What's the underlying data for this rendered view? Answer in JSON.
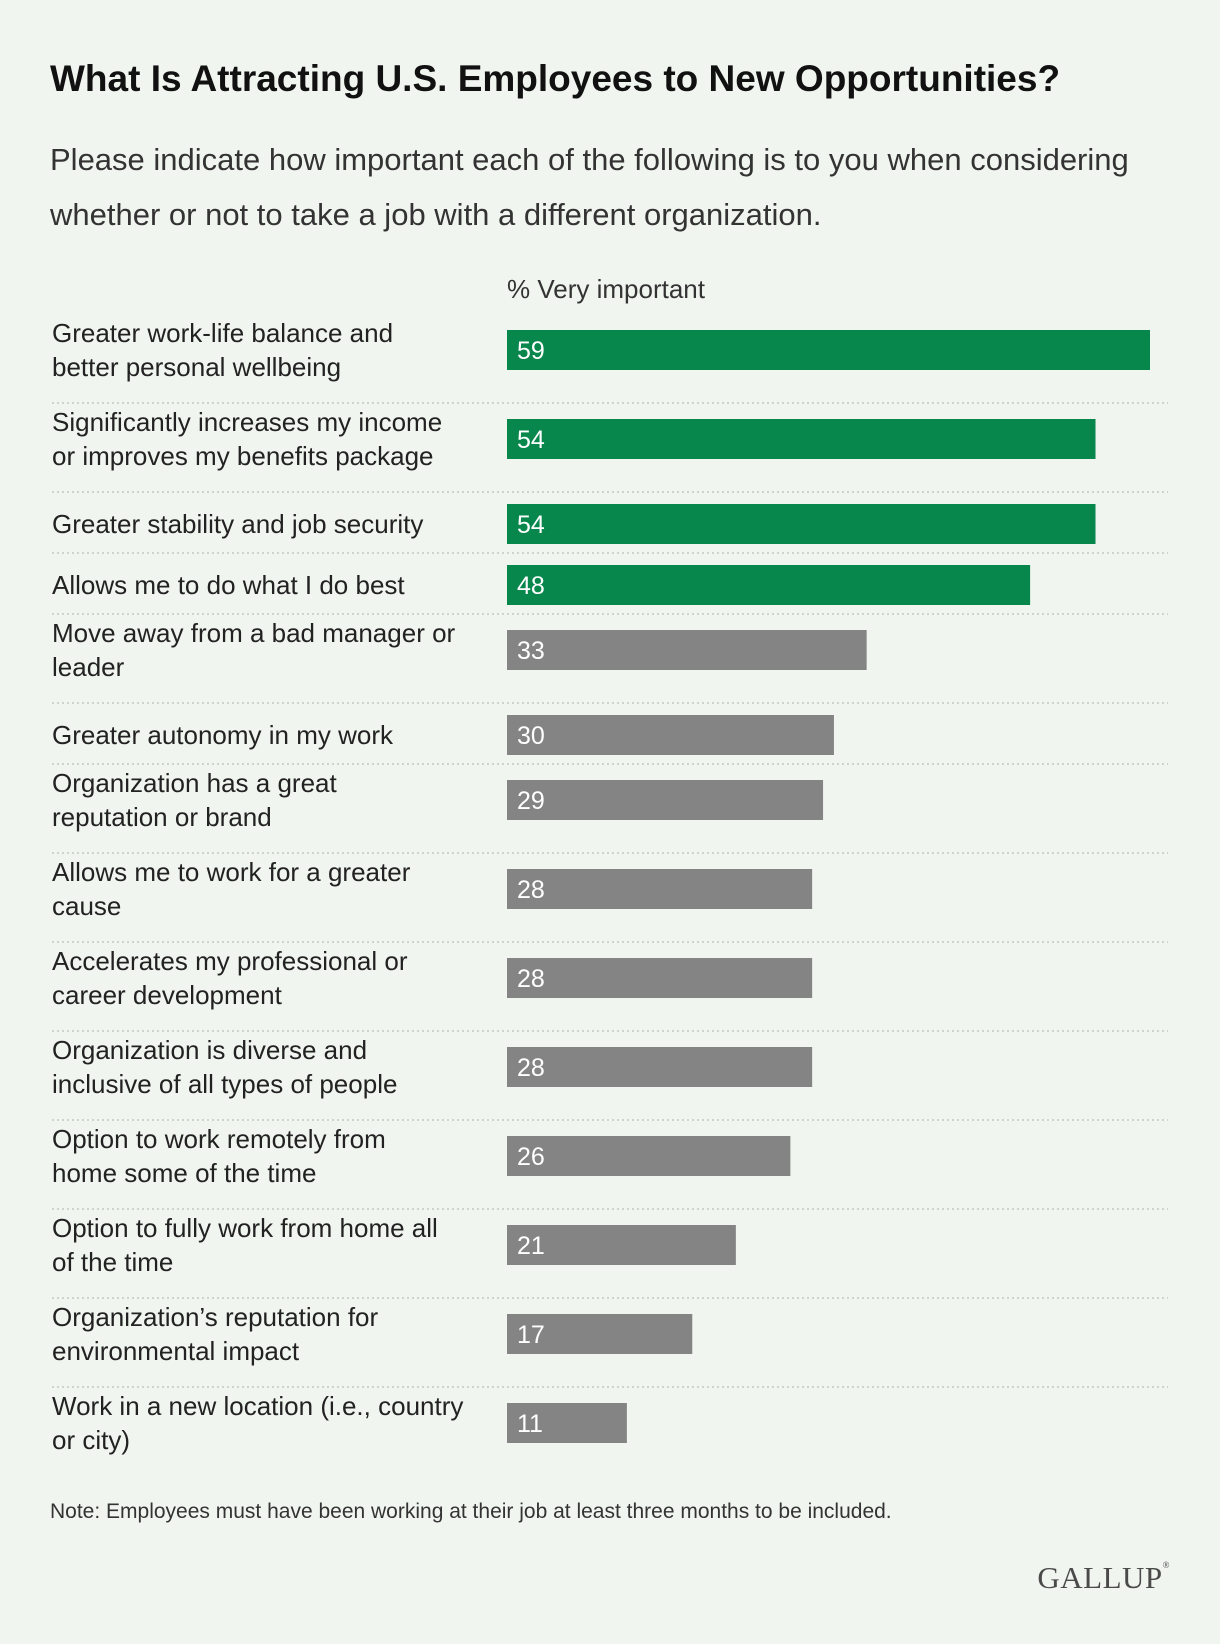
{
  "title": "What Is Attracting U.S. Employees to New Opportunities?",
  "subtitle": "Please indicate how important each of the following is to you when considering whether or not to take a job with a different organization.",
  "note": "Note: Employees must have been working at their job at least three months to be included.",
  "logo": "GALLUP",
  "colors": {
    "highlight": "#07874b",
    "other": "#848484",
    "divider": "#bdbdbd",
    "background": "#f1f5ef"
  },
  "chart_data": {
    "type": "bar",
    "orientation": "horizontal",
    "series_label": "% Very important",
    "xlim": [
      0,
      59
    ],
    "grid": false,
    "rows": [
      {
        "label": [
          "Greater work-life balance and",
          "better personal wellbeing"
        ],
        "value": 59,
        "highlight": true
      },
      {
        "label": [
          "Significantly increases my income",
          "or improves my benefits package"
        ],
        "value": 54,
        "highlight": true
      },
      {
        "label": [
          "Greater stability and job security"
        ],
        "value": 54,
        "highlight": true
      },
      {
        "label": [
          "Allows me to do what I do best"
        ],
        "value": 48,
        "highlight": true
      },
      {
        "label": [
          "Move away from a bad manager or",
          "leader"
        ],
        "value": 33,
        "highlight": false
      },
      {
        "label": [
          "Greater autonomy in my work"
        ],
        "value": 30,
        "highlight": false
      },
      {
        "label": [
          "Organization has a great",
          "reputation or brand"
        ],
        "value": 29,
        "highlight": false
      },
      {
        "label": [
          "Allows me to work for a greater",
          "cause"
        ],
        "value": 28,
        "highlight": false
      },
      {
        "label": [
          "Accelerates my professional or",
          "career development"
        ],
        "value": 28,
        "highlight": false
      },
      {
        "label": [
          "Organization is diverse and",
          "inclusive of all types of people"
        ],
        "value": 28,
        "highlight": false
      },
      {
        "label": [
          "Option to work remotely from",
          "home some of the time"
        ],
        "value": 26,
        "highlight": false
      },
      {
        "label": [
          "Option to fully work from home all",
          "of the time"
        ],
        "value": 21,
        "highlight": false
      },
      {
        "label": [
          "Organization’s reputation for",
          "environmental impact"
        ],
        "value": 17,
        "highlight": false
      },
      {
        "label": [
          "Work in a new location (i.e., country",
          "or city)"
        ],
        "value": 11,
        "highlight": false
      }
    ]
  }
}
